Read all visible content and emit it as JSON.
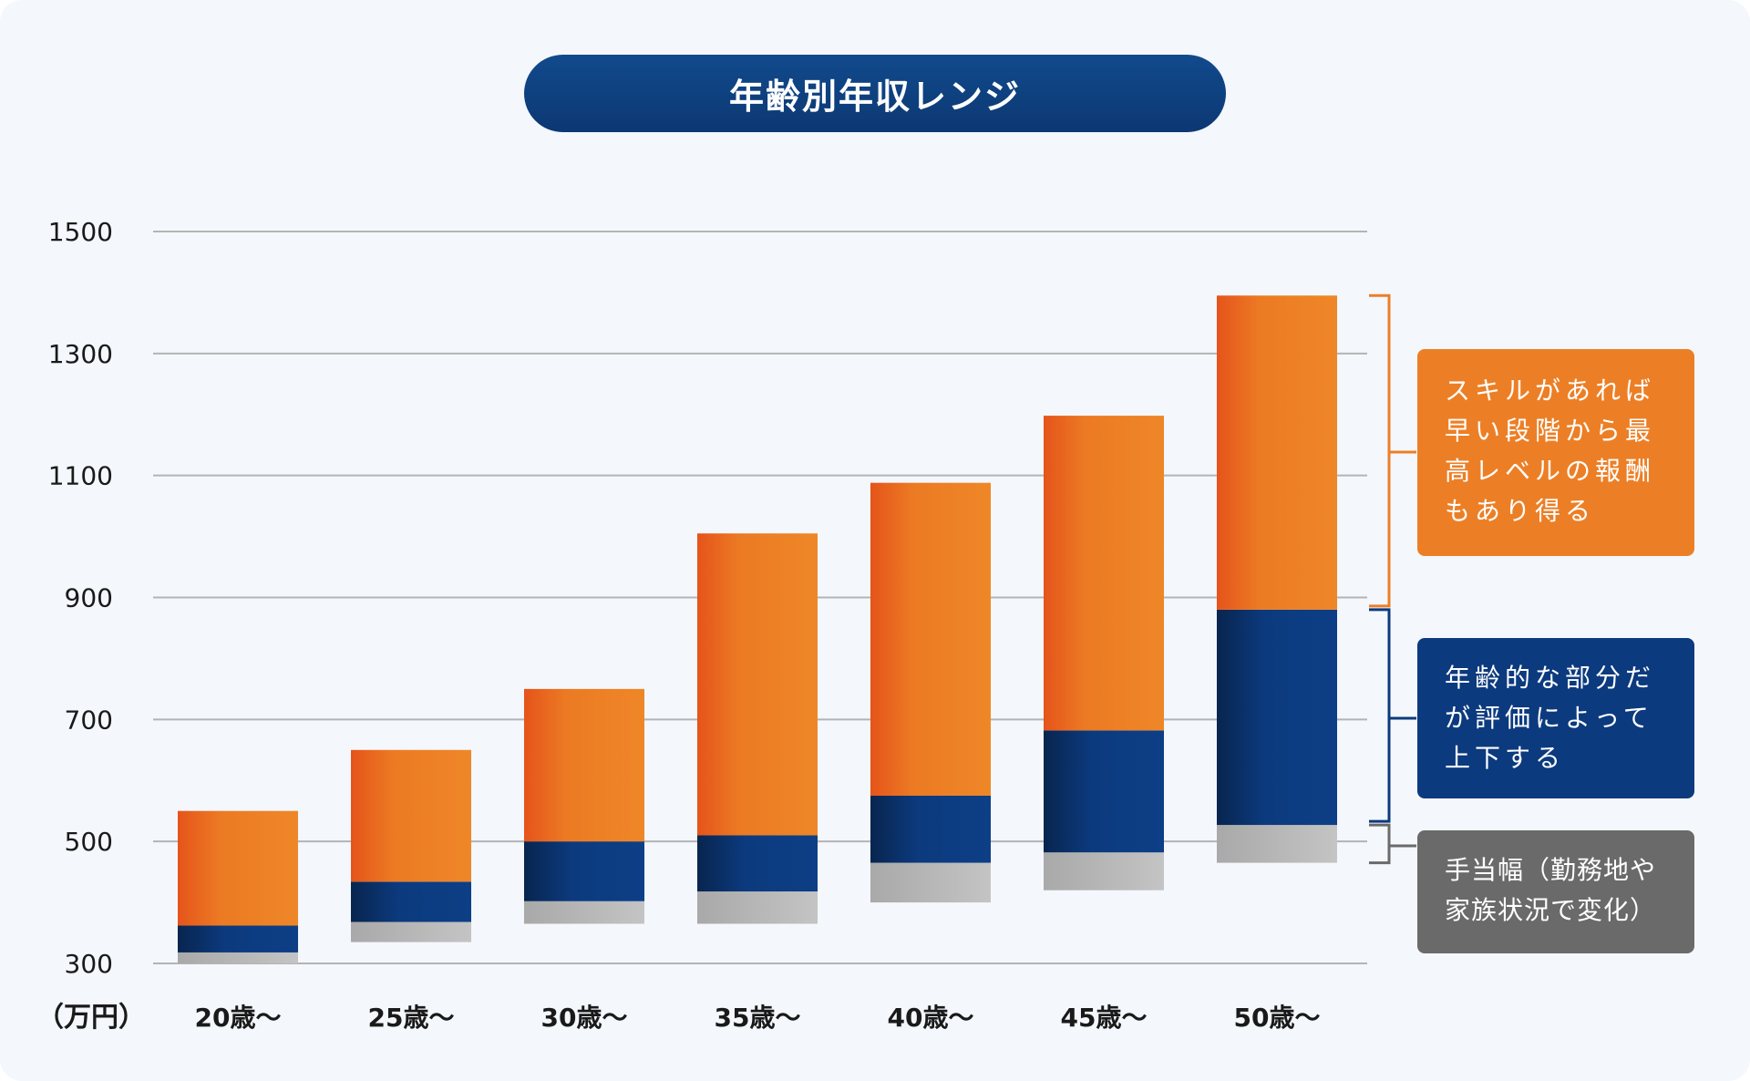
{
  "chart_data": {
    "type": "bar",
    "stacked": true,
    "title": "年齢別年収レンジ",
    "ylabel": "（万円）",
    "ylim": [
      300,
      1500
    ],
    "yticks": [
      300,
      500,
      700,
      900,
      1100,
      1300,
      1500
    ],
    "grid": true,
    "categories": [
      "20歳〜",
      "25歳〜",
      "30歳〜",
      "35歳〜",
      "40歳〜",
      "45歳〜",
      "50歳〜"
    ],
    "series": [
      {
        "name": "手当幅（勤務地や家族状況で変化）",
        "color": "#bebebe",
        "from": [
          300,
          335,
          365,
          365,
          400,
          420,
          465
        ],
        "to": [
          318,
          368,
          402,
          418,
          465,
          482,
          527
        ]
      },
      {
        "name": "年齢的な部分だが評価によって上下する",
        "color": "#0c3a7e",
        "from": [
          318,
          368,
          402,
          418,
          465,
          482,
          527
        ],
        "to": [
          362,
          434,
          500,
          510,
          575,
          682,
          880
        ]
      },
      {
        "name": "スキルがあれば早い段階から最高レベルの報酬もあり得る",
        "color": "#ec7f26",
        "from": [
          362,
          434,
          500,
          510,
          575,
          682,
          880
        ],
        "to": [
          550,
          650,
          750,
          1005,
          1088,
          1198,
          1395
        ]
      }
    ]
  },
  "callouts": {
    "skill": {
      "lines": [
        "スキルがあれば",
        "早い段階から最",
        "高レベルの報酬",
        "もあり得る"
      ],
      "color": "#ec7f26"
    },
    "age": {
      "lines": [
        "年齢的な部分だ",
        "が評価によって",
        "上下する"
      ],
      "color": "#0c3a7e"
    },
    "allowance": {
      "lines": [
        "手当幅（勤務地や",
        "家族状況で変化）"
      ],
      "color": "#6a6a6a"
    }
  }
}
